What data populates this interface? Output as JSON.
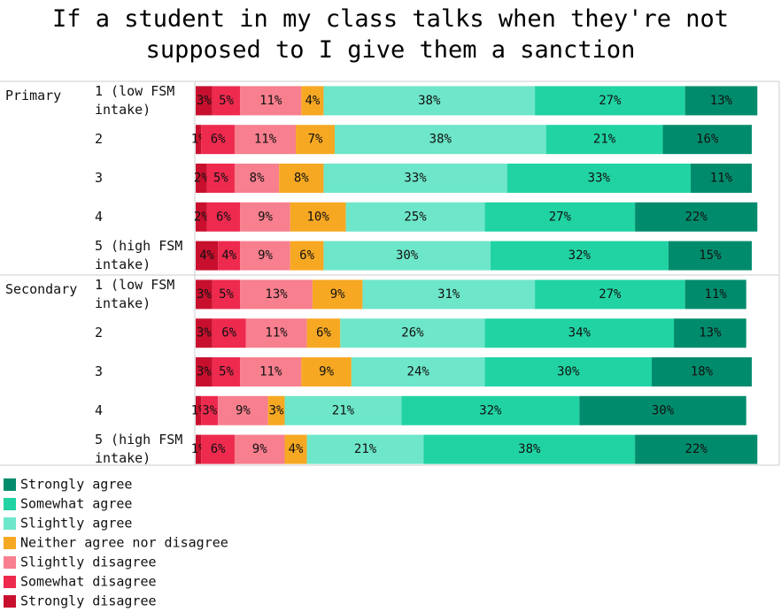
{
  "chart_data": {
    "type": "stacked-bar-horizontal",
    "title": "If a student in my class talks when they're not supposed to I give them a sanction",
    "groups": [
      {
        "name": "Primary",
        "categories": [
          "1 (low FSM intake)",
          "2",
          "3",
          "4",
          "5 (high FSM intake)"
        ]
      },
      {
        "name": "Secondary",
        "categories": [
          "1 (low FSM intake)",
          "2",
          "3",
          "4",
          "5 (high FSM intake)"
        ]
      }
    ],
    "series": [
      {
        "name": "Strongly disagree",
        "color": "#c8102e",
        "values": [
          3,
          1,
          2,
          2,
          4,
          3,
          3,
          3,
          1,
          1
        ],
        "value_labels": [
          "3%",
          "1%",
          "2%",
          "2%",
          "4%",
          "3%",
          "3%",
          "3%",
          "1%",
          "1%"
        ]
      },
      {
        "name": "Somewhat disagree",
        "color": "#ee2a4f",
        "values": [
          5,
          6,
          5,
          6,
          4,
          5,
          6,
          5,
          3,
          6
        ],
        "value_labels": [
          "5%",
          "6%",
          "5%",
          "6%",
          "4%",
          "5%",
          "6%",
          "5%",
          "3%",
          "6%"
        ]
      },
      {
        "name": "Slightly disagree",
        "color": "#f77f8e",
        "values": [
          11,
          11,
          8,
          9,
          9,
          13,
          11,
          11,
          9,
          9
        ],
        "value_labels": [
          "11%",
          "11%",
          "8%",
          "9%",
          "9%",
          "13%",
          "11%",
          "11%",
          "9%",
          "9%"
        ]
      },
      {
        "name": "Neither agree nor disagree",
        "color": "#f7a823",
        "values": [
          4,
          7,
          8,
          10,
          6,
          9,
          6,
          9,
          3,
          4
        ],
        "value_labels": [
          "4%",
          "7%",
          "8%",
          "10%",
          "6%",
          "9%",
          "6%",
          "9%",
          "3%",
          "4%"
        ]
      },
      {
        "name": "Slightly agree",
        "color": "#6ee6c9",
        "values": [
          38,
          38,
          33,
          25,
          30,
          31,
          26,
          24,
          21,
          21
        ],
        "value_labels": [
          "38%",
          "38%",
          "33%",
          "25%",
          "30%",
          "31%",
          "26%",
          "24%",
          "21%",
          "21%"
        ]
      },
      {
        "name": "Somewhat agree",
        "color": "#21d3a3",
        "values": [
          27,
          21,
          33,
          27,
          32,
          27,
          34,
          30,
          32,
          38
        ],
        "value_labels": [
          "27%",
          "21%",
          "33%",
          "27%",
          "32%",
          "27%",
          "34%",
          "30%",
          "32%",
          "38%"
        ]
      },
      {
        "name": "Strongly agree",
        "color": "#008c6c",
        "values": [
          13,
          16,
          11,
          22,
          15,
          11,
          13,
          18,
          30,
          22
        ],
        "value_labels": [
          "13%",
          "16%",
          "11%",
          "22%",
          "15%",
          "11%",
          "13%",
          "18%",
          "30%",
          "22%"
        ]
      }
    ]
  }
}
